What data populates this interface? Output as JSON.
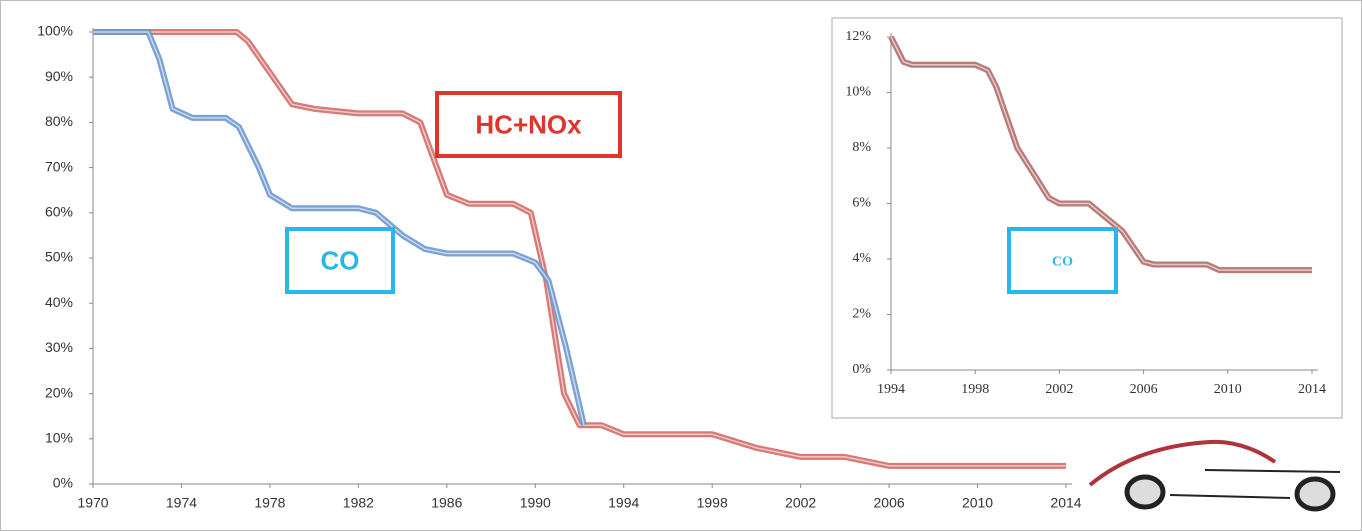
{
  "chart_data": [
    {
      "type": "line",
      "xlim": [
        1970,
        2014
      ],
      "xticks": [
        1970,
        1974,
        1978,
        1982,
        1986,
        1990,
        1994,
        1998,
        2002,
        2006,
        2010,
        2014
      ],
      "ylim": [
        0,
        100
      ],
      "yticks": [
        {
          "value": 0,
          "label": "0%"
        },
        {
          "value": 10,
          "label": "10%"
        },
        {
          "value": 20,
          "label": "20%"
        },
        {
          "value": 30,
          "label": "30%"
        },
        {
          "value": 40,
          "label": "40%"
        },
        {
          "value": 50,
          "label": "50%"
        },
        {
          "value": 60,
          "label": "60%"
        },
        {
          "value": 70,
          "label": "70%"
        },
        {
          "value": 80,
          "label": "80%"
        },
        {
          "value": 90,
          "label": "90%"
        },
        {
          "value": 100,
          "label": "100%"
        }
      ],
      "series": [
        {
          "name": "HC+NOx",
          "color": "#d36b67",
          "label_color": "#e0352b",
          "x": [
            1970,
            1976.5,
            1977,
            1979,
            1980,
            1982,
            1984,
            1984.8,
            1986,
            1987,
            1989,
            1989.8,
            1990.5,
            1991.3,
            1992,
            1993,
            1994,
            1998,
            2000,
            2002,
            2004,
            2006,
            2014
          ],
          "values": [
            100,
            100,
            98,
            84,
            83,
            82,
            82,
            80,
            64,
            62,
            62,
            60,
            45,
            20,
            13,
            13,
            11,
            11,
            8,
            6,
            6,
            4,
            4
          ]
        },
        {
          "name": "CO",
          "color": "#6b97cf",
          "label_color": "#29b6e8",
          "x": [
            1970,
            1972.5,
            1973,
            1973.6,
            1974.5,
            1976,
            1976.6,
            1977.5,
            1978,
            1979,
            1982,
            1982.8,
            1984,
            1985,
            1986,
            1989,
            1990,
            1990.6,
            1991.4,
            1992.2
          ],
          "values": [
            100,
            100,
            94,
            83,
            81,
            81,
            79,
            70,
            64,
            61,
            61,
            60,
            55,
            52,
            51,
            51,
            49,
            45,
            30,
            13
          ]
        }
      ]
    },
    {
      "type": "line",
      "xlim": [
        1994,
        2014
      ],
      "xticks": [
        1994,
        1998,
        2002,
        2006,
        2010,
        2014
      ],
      "ylim": [
        0,
        12
      ],
      "yticks": [
        {
          "value": 0,
          "label": "0%"
        },
        {
          "value": 2,
          "label": "2%"
        },
        {
          "value": 4,
          "label": "4%"
        },
        {
          "value": 6,
          "label": "6%"
        },
        {
          "value": 8,
          "label": "8%"
        },
        {
          "value": 10,
          "label": "10%"
        },
        {
          "value": 12,
          "label": "12%"
        }
      ],
      "series": [
        {
          "name": "CO",
          "color": "#b06b6a",
          "label_color": "#29b6e8",
          "x": [
            1994,
            1994.6,
            1995,
            1998,
            1998.6,
            1999,
            2000,
            2001.5,
            2002,
            2003.4,
            2005,
            2006,
            2006.5,
            2009,
            2009.6,
            2010,
            2014
          ],
          "values": [
            12,
            11.1,
            11,
            11,
            10.8,
            10.2,
            8,
            6.2,
            6,
            6,
            5,
            3.9,
            3.8,
            3.8,
            3.6,
            3.6,
            3.6
          ]
        }
      ]
    }
  ]
}
